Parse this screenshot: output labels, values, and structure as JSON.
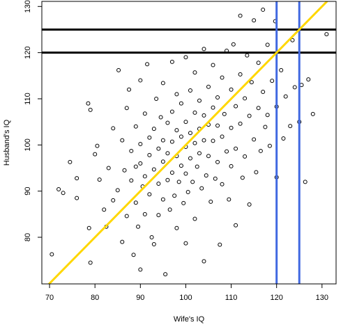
{
  "chart_data": {
    "type": "scatter",
    "xlabel": "Wife's IQ",
    "ylabel": "Husband's IQ",
    "xlim": [
      68.3,
      133.1
    ],
    "ylim": [
      69.9,
      131.1
    ],
    "xticks": [
      70,
      80,
      90,
      100,
      110,
      120,
      130
    ],
    "yticks": [
      80,
      90,
      100,
      110,
      120,
      130
    ],
    "point_color": "#000000",
    "x": [
      70.5,
      72,
      73,
      74.5,
      76,
      76,
      78.5,
      79,
      78.7,
      79,
      80,
      80.5,
      81,
      82,
      82.5,
      83,
      84,
      84,
      85,
      85.2,
      86,
      86,
      86.5,
      87,
      87,
      87.5,
      88,
      88,
      88.5,
      89,
      89,
      89,
      89.5,
      90,
      90,
      90,
      90,
      90.5,
      91,
      91,
      91,
      91.5,
      92,
      92,
      92,
      92.5,
      93,
      93,
      93,
      93.5,
      94,
      94,
      94,
      94.5,
      95,
      95,
      95,
      95,
      95.5,
      96,
      96,
      96,
      96.5,
      97,
      97,
      97,
      97,
      97.5,
      98,
      98,
      98,
      98,
      98.5,
      99,
      99,
      99,
      99.5,
      100,
      100,
      100,
      100,
      100,
      100.5,
      101,
      101,
      101,
      101.5,
      102,
      102,
      102,
      102,
      102.5,
      103,
      103,
      103,
      103.5,
      104,
      104,
      104,
      104,
      104.5,
      105,
      105,
      105,
      105.5,
      106,
      106,
      106,
      106.5,
      107,
      107,
      107,
      107.5,
      108,
      108,
      108,
      108.5,
      109,
      109,
      109.5,
      110,
      110,
      110,
      110.5,
      111,
      111,
      111,
      112,
      112,
      112,
      112.5,
      113,
      113,
      113.5,
      114,
      114,
      114.5,
      115,
      115,
      115.5,
      116,
      116,
      116.5,
      117,
      117,
      117.5,
      118,
      118,
      118.5,
      119,
      119.7,
      120,
      120,
      121,
      121.5,
      122,
      123,
      123.5,
      124,
      125,
      125.5,
      126.3,
      127,
      128,
      131
    ],
    "values": [
      76.3,
      90.4,
      89.6,
      96.3,
      92.8,
      88.5,
      109,
      107.6,
      82,
      74.5,
      98,
      99.8,
      92.5,
      86,
      82.3,
      95,
      103.6,
      88,
      90.2,
      116.2,
      101,
      79,
      94.5,
      108,
      84.6,
      112,
      98.7,
      92.3,
      76.2,
      104,
      95.3,
      87.5,
      82.3,
      114,
      100.2,
      96,
      73,
      91,
      106.8,
      93.2,
      85,
      117.5,
      101.6,
      97.8,
      89.3,
      80,
      103.5,
      94.7,
      78.5,
      110,
      99.2,
      91.6,
      84.8,
      106,
      113.4,
      101,
      96.4,
      88.2,
      72,
      104.8,
      98.2,
      92.4,
      86,
      118,
      107.2,
      100.7,
      94,
      89,
      111,
      103.2,
      97.6,
      82,
      92,
      109,
      101.8,
      95.5,
      87.4,
      119,
      105,
      99.6,
      93.8,
      78.7,
      89.8,
      111.8,
      102.6,
      97.1,
      92,
      115.7,
      107,
      100.4,
      84,
      95.3,
      109.6,
      103.5,
      98.2,
      90.6,
      120.8,
      106.4,
      101,
      74.8,
      93.4,
      112.6,
      104.4,
      97.6,
      87.7,
      117.3,
      108.1,
      100.9,
      92.7,
      110.3,
      104.2,
      96.3,
      78.4,
      114.6,
      101.8,
      91.5,
      106.7,
      120.4,
      98.6,
      88.2,
      112,
      103.7,
      95.4,
      121.8,
      108.4,
      99.2,
      82.6,
      128,
      115.3,
      104.6,
      92.9,
      110.1,
      97.5,
      119.4,
      106.3,
      87.1,
      113.6,
      127,
      101.2,
      94.1,
      117.8,
      108,
      98.7,
      129.3,
      111.5,
      103.9,
      121.7,
      106.5,
      99.8,
      113.9,
      126.8,
      93,
      108.3,
      116.2,
      101.4,
      110.5,
      104.1,
      122.7,
      112.5,
      105,
      113,
      92,
      114.2,
      106.7,
      124
    ],
    "hlines": {
      "values": [
        120,
        125
      ],
      "color": "#000000"
    },
    "vlines": {
      "values": [
        120,
        125
      ],
      "color": "#4169e1"
    },
    "abline": {
      "intercept": 0,
      "slope": 1,
      "color": "#ffd700"
    }
  }
}
